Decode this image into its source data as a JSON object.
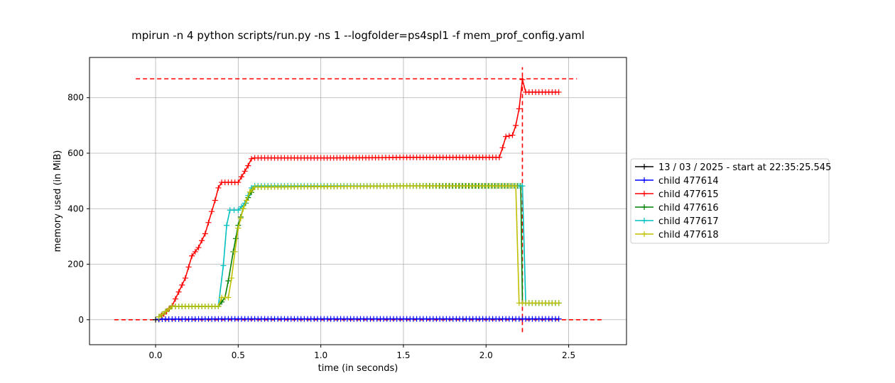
{
  "chart_data": {
    "type": "line",
    "title": "mpirun -n 4 python scripts/run.py -ns 1 --logfolder=ps4spl1 -f mem_prof_config.yaml",
    "xlabel": "time (in seconds)",
    "ylabel": "memory used (in MiB)",
    "xlim": [
      -0.4,
      2.85
    ],
    "ylim": [
      -90,
      945
    ],
    "xticks": [
      0.0,
      0.5,
      1.0,
      1.5,
      2.0,
      2.5
    ],
    "xtick_labels": [
      "0.0",
      "0.5",
      "1.0",
      "1.5",
      "2.0",
      "2.5"
    ],
    "yticks": [
      0,
      200,
      400,
      600,
      800
    ],
    "ytick_labels": [
      "0",
      "200",
      "400",
      "600",
      "800"
    ],
    "grid": true,
    "legend_position": "right-outside",
    "series": [
      {
        "name": "13 / 03 / 2025 - start at 22:35:25.545",
        "color": "#000000",
        "marker": "+",
        "points": [
          [
            0.0,
            0
          ],
          [
            0.02,
            1
          ]
        ]
      },
      {
        "name": "child 477614",
        "color": "#0000ff",
        "marker": "+",
        "points": [
          [
            0.02,
            2
          ],
          [
            0.5,
            3
          ],
          [
            1.0,
            3
          ],
          [
            1.5,
            3
          ],
          [
            2.0,
            3
          ],
          [
            2.44,
            3
          ]
        ]
      },
      {
        "name": "child 477615",
        "color": "#ff0000",
        "marker": "+",
        "points": [
          [
            0.02,
            10
          ],
          [
            0.05,
            20
          ],
          [
            0.1,
            50
          ],
          [
            0.14,
            100
          ],
          [
            0.18,
            150
          ],
          [
            0.22,
            230
          ],
          [
            0.26,
            260
          ],
          [
            0.3,
            310
          ],
          [
            0.34,
            390
          ],
          [
            0.36,
            430
          ],
          [
            0.38,
            475
          ],
          [
            0.4,
            495
          ],
          [
            0.5,
            495
          ],
          [
            0.52,
            515
          ],
          [
            0.56,
            555
          ],
          [
            0.58,
            580
          ],
          [
            0.6,
            583
          ],
          [
            1.0,
            583
          ],
          [
            1.35,
            584
          ],
          [
            1.5,
            585
          ],
          [
            2.08,
            585
          ],
          [
            2.1,
            620
          ],
          [
            2.12,
            660
          ],
          [
            2.16,
            665
          ],
          [
            2.18,
            700
          ],
          [
            2.2,
            760
          ],
          [
            2.22,
            865
          ],
          [
            2.24,
            820
          ],
          [
            2.44,
            820
          ]
        ]
      },
      {
        "name": "child 477616",
        "color": "#008000",
        "marker": "+",
        "points": [
          [
            0.02,
            10
          ],
          [
            0.1,
            48
          ],
          [
            0.38,
            48
          ],
          [
            0.42,
            80
          ],
          [
            0.44,
            140
          ],
          [
            0.47,
            245
          ],
          [
            0.5,
            340
          ],
          [
            0.53,
            400
          ],
          [
            0.56,
            440
          ],
          [
            0.6,
            478
          ],
          [
            1.0,
            480
          ],
          [
            1.5,
            482
          ],
          [
            2.21,
            482
          ],
          [
            2.22,
            60
          ],
          [
            2.44,
            60
          ]
        ]
      },
      {
        "name": "child 477617",
        "color": "#00bfbf",
        "marker": "+",
        "points": [
          [
            0.02,
            10
          ],
          [
            0.1,
            48
          ],
          [
            0.38,
            48
          ],
          [
            0.41,
            195
          ],
          [
            0.43,
            340
          ],
          [
            0.45,
            395
          ],
          [
            0.5,
            395
          ],
          [
            0.54,
            420
          ],
          [
            0.58,
            475
          ],
          [
            0.6,
            482
          ],
          [
            1.0,
            482
          ],
          [
            2.22,
            482
          ],
          [
            2.24,
            60
          ],
          [
            2.44,
            60
          ]
        ]
      },
      {
        "name": "child 477618",
        "color": "#bfbf00",
        "marker": "+",
        "points": [
          [
            0.02,
            10
          ],
          [
            0.1,
            48
          ],
          [
            0.38,
            48
          ],
          [
            0.4,
            80
          ],
          [
            0.44,
            80
          ],
          [
            0.46,
            150
          ],
          [
            0.48,
            245
          ],
          [
            0.5,
            330
          ],
          [
            0.53,
            400
          ],
          [
            0.57,
            460
          ],
          [
            0.6,
            478
          ],
          [
            1.0,
            480
          ],
          [
            1.5,
            482
          ],
          [
            2.18,
            482
          ],
          [
            2.2,
            60
          ],
          [
            2.44,
            60
          ]
        ]
      }
    ],
    "reference_lines": {
      "color": "#ff0000",
      "horizontal": [
        {
          "y": 0,
          "x_from": -0.25,
          "x_to": 2.7
        },
        {
          "y": 868,
          "x_from": -0.12,
          "x_to": 2.55
        }
      ],
      "vertical": [
        {
          "x": 2.22,
          "y_from": -45,
          "y_to": 910
        }
      ]
    }
  }
}
